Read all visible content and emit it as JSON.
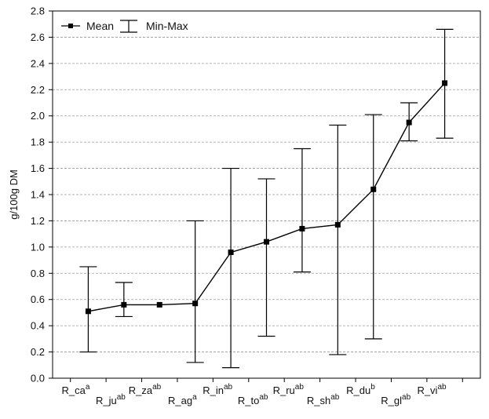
{
  "chart_data": {
    "type": "line",
    "title": "",
    "xlabel": "",
    "ylabel": "g/100g DM",
    "ylim": [
      0.0,
      2.8
    ],
    "yticks": [
      0.0,
      0.2,
      0.4,
      0.6,
      0.8,
      1.0,
      1.2,
      1.4,
      1.6,
      1.8,
      2.0,
      2.2,
      2.4,
      2.6,
      2.8
    ],
    "ytick_labels": [
      "0.0",
      "0.2",
      "0.4",
      "0.6",
      "0.8",
      "1.0",
      "1.2",
      "1.4",
      "1.6",
      "1.8",
      "2.0",
      "2.2",
      "2.4",
      "2.6",
      "2.8"
    ],
    "grid": "horizontal dashed",
    "legend_position": "top-left",
    "legend": {
      "mean_label": "Mean",
      "range_label": "Min-Max"
    },
    "categories": [
      {
        "base": "R_ca",
        "sup": "a"
      },
      {
        "base": "R_ju",
        "sup": "ab"
      },
      {
        "base": "R_za",
        "sup": "ab"
      },
      {
        "base": "R_ag",
        "sup": "a"
      },
      {
        "base": "R_in",
        "sup": "ab"
      },
      {
        "base": "R_to",
        "sup": "ab"
      },
      {
        "base": "R_ru",
        "sup": "ab"
      },
      {
        "base": "R_sh",
        "sup": "ab"
      },
      {
        "base": "R_du",
        "sup": "b"
      },
      {
        "base": "R_gl",
        "sup": "ab"
      },
      {
        "base": "R_vi",
        "sup": "ab"
      }
    ],
    "series": [
      {
        "name": "Mean",
        "values": [
          0.51,
          0.56,
          0.56,
          0.57,
          0.96,
          1.04,
          1.14,
          1.17,
          1.44,
          1.95,
          2.25
        ]
      },
      {
        "name": "Min",
        "values": [
          0.2,
          0.47,
          0.56,
          0.12,
          0.08,
          0.32,
          0.81,
          0.18,
          0.3,
          1.81,
          1.83
        ]
      },
      {
        "name": "Max",
        "values": [
          0.85,
          0.73,
          0.56,
          1.2,
          1.6,
          1.52,
          1.75,
          1.93,
          2.01,
          2.1,
          2.66
        ]
      }
    ],
    "colors": {
      "line": "#000000",
      "grid": "#9a9a9a",
      "axis": "#000000"
    }
  }
}
